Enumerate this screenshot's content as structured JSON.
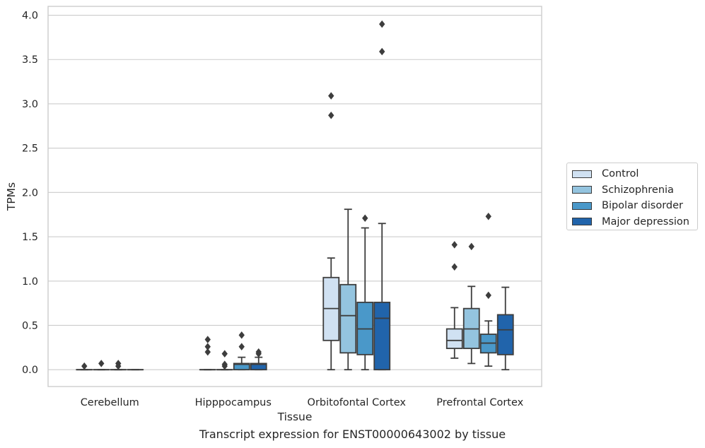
{
  "caption": "Transcript expression for ENST00000643002 by tissue",
  "chart_data": {
    "type": "box",
    "xlabel": "Tissue",
    "ylabel": "TPMs",
    "ylim": [
      -0.19,
      4.1
    ],
    "yticks": [
      0.0,
      0.5,
      1.0,
      1.5,
      2.0,
      2.5,
      3.0,
      3.5,
      4.0
    ],
    "ytick_labels": [
      "0.0",
      "0.5",
      "1.0",
      "1.5",
      "2.0",
      "2.5",
      "3.0",
      "3.5",
      "4.0"
    ],
    "grid": "horizontal",
    "legend_position": "right",
    "categories": [
      "Cerebellum",
      "Hipppocampus",
      "Orbitofontal Cortex",
      "Prefrontal Cortex"
    ],
    "series": [
      {
        "name": "Control",
        "color": "#d0e1f2",
        "boxes": [
          {
            "whislo": 0.0,
            "q1": 0.0,
            "med": 0.0,
            "q3": 0.0,
            "whishi": 0.0,
            "fliers": [
              0.04
            ]
          },
          {
            "whislo": 0.0,
            "q1": 0.0,
            "med": 0.0,
            "q3": 0.0,
            "whishi": 0.0,
            "fliers": [
              0.2,
              0.26,
              0.34
            ]
          },
          {
            "whislo": 0.0,
            "q1": 0.33,
            "med": 0.69,
            "q3": 1.04,
            "whishi": 1.26,
            "fliers": [
              3.09,
              2.87
            ]
          },
          {
            "whislo": 0.13,
            "q1": 0.24,
            "med": 0.33,
            "q3": 0.46,
            "whishi": 0.7,
            "fliers": [
              1.41,
              1.16
            ]
          }
        ]
      },
      {
        "name": "Schizophrenia",
        "color": "#94c4df",
        "boxes": [
          {
            "whislo": 0.0,
            "q1": 0.0,
            "med": 0.0,
            "q3": 0.0,
            "whishi": 0.0,
            "fliers": [
              0.07
            ]
          },
          {
            "whislo": 0.0,
            "q1": 0.0,
            "med": 0.0,
            "q3": 0.0,
            "whishi": 0.0,
            "fliers": [
              0.04,
              0.06,
              0.18
            ]
          },
          {
            "whislo": 0.0,
            "q1": 0.19,
            "med": 0.61,
            "q3": 0.96,
            "whishi": 1.81,
            "fliers": []
          },
          {
            "whislo": 0.07,
            "q1": 0.24,
            "med": 0.46,
            "q3": 0.69,
            "whishi": 0.94,
            "fliers": [
              1.39
            ]
          }
        ]
      },
      {
        "name": "Bipolar disorder",
        "color": "#4a98c9",
        "boxes": [
          {
            "whislo": 0.0,
            "q1": 0.0,
            "med": 0.0,
            "q3": 0.0,
            "whishi": 0.0,
            "fliers": [
              0.04,
              0.07
            ]
          },
          {
            "whislo": 0.0,
            "q1": 0.0,
            "med": 0.06,
            "q3": 0.07,
            "whishi": 0.14,
            "fliers": [
              0.26,
              0.39
            ]
          },
          {
            "whislo": 0.0,
            "q1": 0.17,
            "med": 0.46,
            "q3": 0.76,
            "whishi": 1.6,
            "fliers": [
              1.71
            ]
          },
          {
            "whislo": 0.04,
            "q1": 0.19,
            "med": 0.3,
            "q3": 0.4,
            "whishi": 0.55,
            "fliers": [
              0.84,
              1.73
            ]
          }
        ]
      },
      {
        "name": "Major depression",
        "color": "#2164ab",
        "boxes": [
          {
            "whislo": 0.0,
            "q1": 0.0,
            "med": 0.0,
            "q3": 0.0,
            "whishi": 0.0,
            "fliers": []
          },
          {
            "whislo": 0.0,
            "q1": 0.0,
            "med": 0.06,
            "q3": 0.07,
            "whishi": 0.14,
            "fliers": [
              0.18,
              0.2
            ]
          },
          {
            "whislo": 0.0,
            "q1": 0.0,
            "med": 0.58,
            "q3": 0.76,
            "whishi": 1.65,
            "fliers": [
              3.9,
              3.59
            ]
          },
          {
            "whislo": 0.0,
            "q1": 0.17,
            "med": 0.45,
            "q3": 0.62,
            "whishi": 0.93,
            "fliers": []
          }
        ]
      }
    ]
  }
}
